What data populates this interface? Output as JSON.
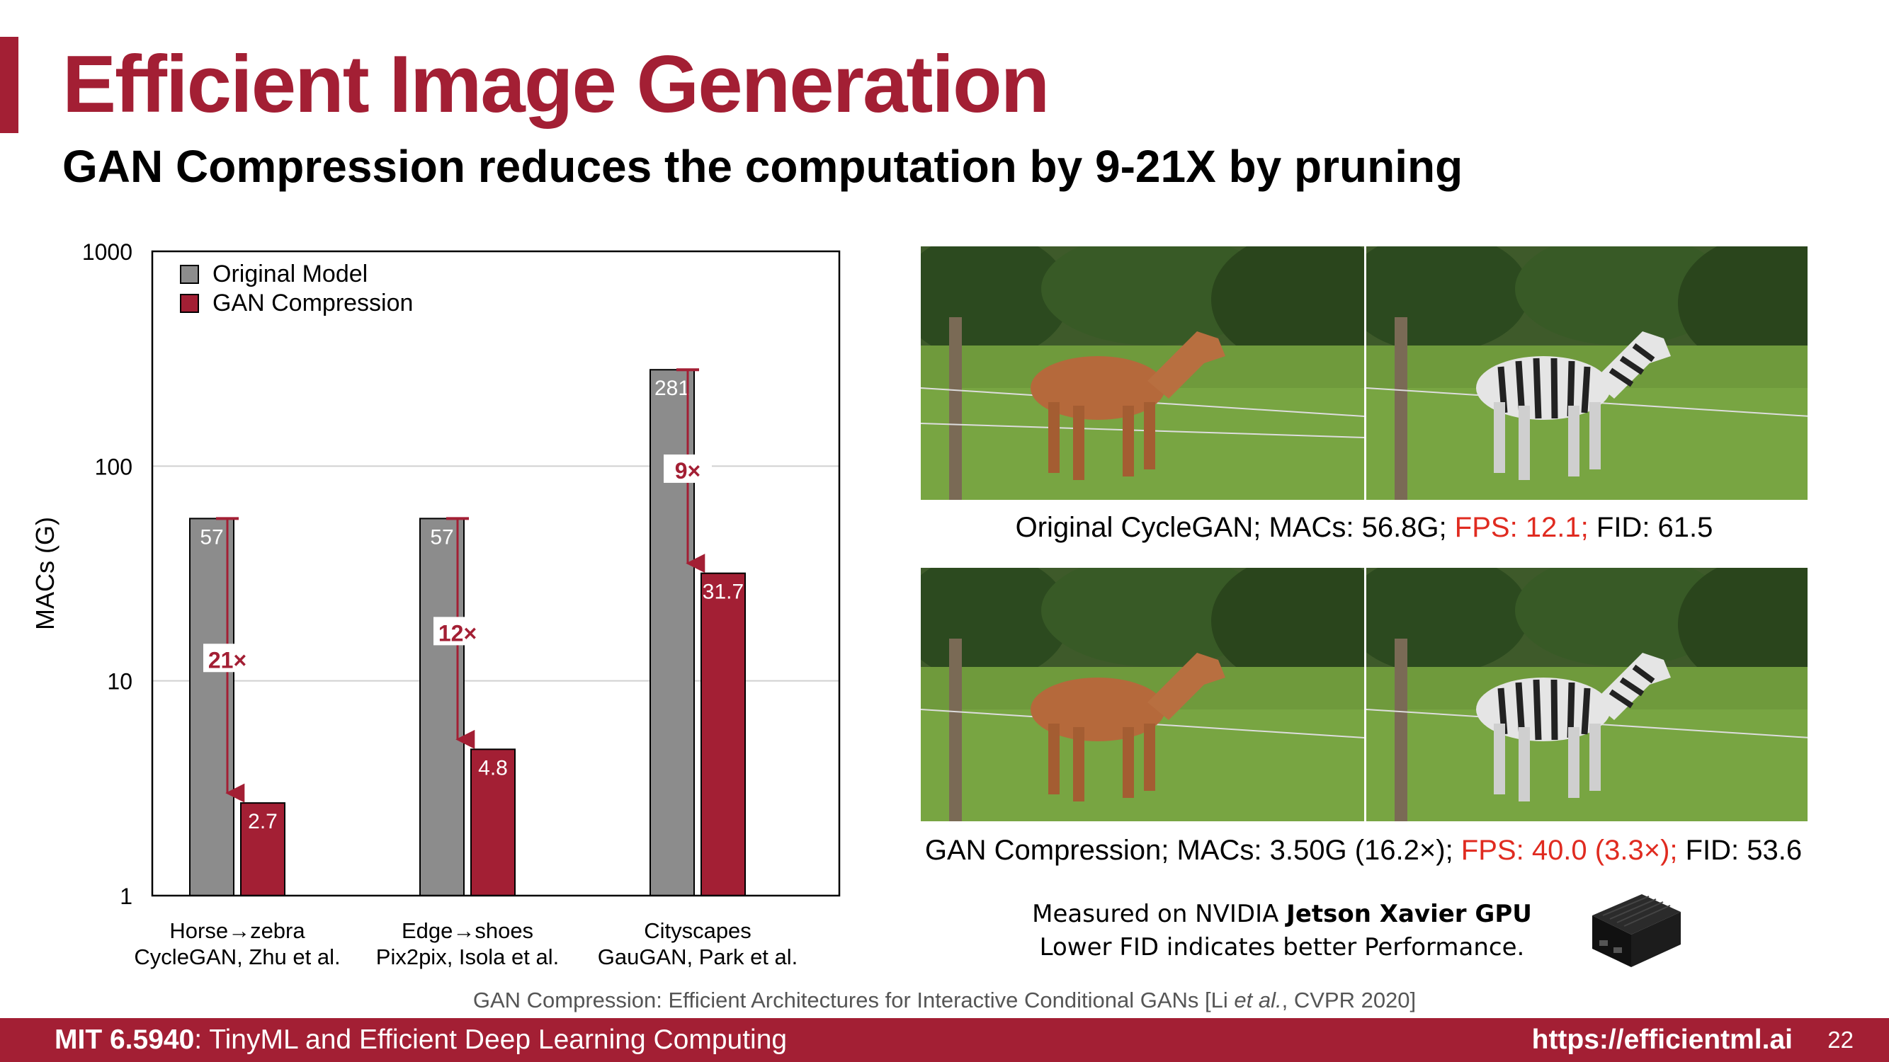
{
  "slide": {
    "title": "Efficient Image Generation",
    "subtitle": "GAN Compression reduces the computation by 9-21X by pruning",
    "accent_color": "#A31F34"
  },
  "chart_data": {
    "type": "bar",
    "scale": "log",
    "ylabel": "MACs (G)",
    "ylim": [
      1,
      1000
    ],
    "yticks": [
      "1",
      "10",
      "100",
      "1000"
    ],
    "grid": true,
    "legend": "top-left",
    "categories": [
      [
        "Horse→zebra",
        "CycleGAN, Zhu et al."
      ],
      [
        "Edge→shoes",
        "Pix2pix, Isola et al."
      ],
      [
        "Cityscapes",
        "GauGAN, Park et al."
      ]
    ],
    "series": [
      {
        "name": "Original Model",
        "color": "#8C8C8C",
        "values": [
          57,
          57,
          281
        ],
        "labels": [
          "57",
          "57",
          "281"
        ]
      },
      {
        "name": "GAN Compression",
        "color": "#A31F34",
        "values": [
          2.7,
          4.8,
          31.7
        ],
        "labels": [
          "2.7",
          "4.8",
          "31.7"
        ]
      }
    ],
    "annotations": [
      {
        "text": "21×",
        "from": 57,
        "to": 2.7
      },
      {
        "text": "12×",
        "from": 57,
        "to": 4.8
      },
      {
        "text": "9×",
        "from": 281,
        "to": 31.7
      }
    ]
  },
  "images": {
    "top": {
      "left": "horse",
      "right": "zebra"
    },
    "bottom": {
      "left": "horse",
      "right": "zebra"
    }
  },
  "captions": {
    "original": {
      "part1": "Original CycleGAN; MACs: 56.8G; ",
      "part2": "FPS: 12.1;",
      "part3": " FID: 61.5"
    },
    "compressed": {
      "part1": "GAN Compression; MACs: 3.50G (16.2×); ",
      "part2": "FPS: 40.0 (3.3×);",
      "part3": " FID: 53.6"
    }
  },
  "note": {
    "line1_prefix": "Measured on NVIDIA ",
    "line1_bold": "Jetson Xavier GPU",
    "line2": "Lower FID indicates better Performance."
  },
  "citation": {
    "prefix": "GAN Compression: Efficient Architectures for Interactive Conditional GANs [Li ",
    "italic": "et al.",
    "suffix": ", CVPR 2020]"
  },
  "footer": {
    "course_code": "MIT 6.5940",
    "course_name": ": TinyML and Efficient Deep Learning Computing",
    "url": "https://efficientml.ai",
    "page": "22"
  }
}
